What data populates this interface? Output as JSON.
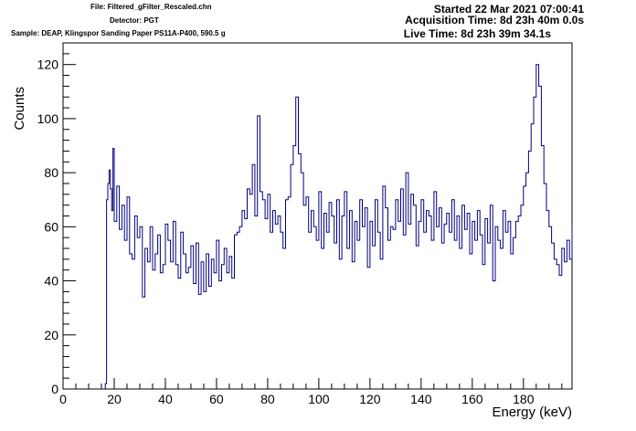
{
  "header": {
    "file": "File: Filtered_gFilter_Rescaled.chn",
    "detector": "Detector: PGT",
    "sample": "Sample: DEAP, Klingspor Sanding Paper PS11A-P400, 590.5 g",
    "started": "Started 22 Mar 2021 07:00:41",
    "acquisition": "Acquisition Time: 8d 23h 40m 0.0s",
    "live": "Live Time: 8d 23h 39m 34.1s"
  },
  "chart_data": {
    "type": "line",
    "style": "histogram-step",
    "xlabel": "Energy (keV)",
    "ylabel": "Counts",
    "xlim": [
      0,
      199
    ],
    "ylim": [
      0,
      128
    ],
    "x_ticks": [
      0,
      20,
      40,
      60,
      80,
      100,
      120,
      140,
      160,
      180
    ],
    "y_ticks": [
      0,
      20,
      40,
      60,
      80,
      100,
      120
    ],
    "grid": false,
    "line_color": "#000080",
    "x": [
      16.5,
      17.0,
      17.5,
      18.0,
      18.5,
      19.0,
      19.5,
      20.0,
      21,
      22,
      23,
      24,
      25,
      26,
      27,
      28,
      29,
      30,
      31,
      32,
      33,
      34,
      35,
      36,
      37,
      38,
      39,
      40,
      41,
      42,
      43,
      44,
      45,
      46,
      47,
      48,
      49,
      50,
      51,
      52,
      53,
      54,
      55,
      56,
      57,
      58,
      59,
      60,
      61,
      62,
      63,
      64,
      65,
      66,
      67,
      68,
      69,
      70,
      71,
      72,
      73,
      74,
      75,
      76,
      77,
      78,
      79,
      80,
      81,
      82,
      83,
      84,
      85,
      86,
      87,
      88,
      89,
      90,
      91,
      92,
      93,
      94,
      95,
      96,
      97,
      98,
      99,
      100,
      101,
      102,
      103,
      104,
      105,
      106,
      107,
      108,
      109,
      110,
      111,
      112,
      113,
      114,
      115,
      116,
      117,
      118,
      119,
      120,
      121,
      122,
      123,
      124,
      125,
      126,
      127,
      128,
      129,
      130,
      131,
      132,
      133,
      134,
      135,
      136,
      137,
      138,
      139,
      140,
      141,
      142,
      143,
      144,
      145,
      146,
      147,
      148,
      149,
      150,
      151,
      152,
      153,
      154,
      155,
      156,
      157,
      158,
      159,
      160,
      161,
      162,
      163,
      164,
      165,
      166,
      167,
      168,
      169,
      170,
      171,
      172,
      173,
      174,
      175,
      176,
      177,
      178,
      179,
      180,
      181,
      182,
      183,
      184,
      185,
      186,
      187,
      188,
      189,
      190,
      191,
      192,
      193,
      194,
      195,
      196,
      197,
      198,
      199
    ],
    "y": [
      2,
      70,
      76,
      81,
      74,
      66,
      89,
      62,
      75,
      59,
      68,
      55,
      71,
      50,
      48,
      64,
      56,
      60,
      34,
      52,
      47,
      60,
      44,
      50,
      57,
      43,
      46,
      61,
      55,
      47,
      62,
      46,
      41,
      58,
      50,
      43,
      45,
      53,
      39,
      54,
      35,
      47,
      36,
      50,
      38,
      48,
      43,
      55,
      40,
      46,
      52,
      43,
      49,
      41,
      57,
      58,
      60,
      66,
      63,
      74,
      72,
      83,
      64,
      101,
      73,
      70,
      63,
      72,
      58,
      66,
      61,
      64,
      58,
      52,
      70,
      71,
      83,
      90,
      108,
      87,
      80,
      68,
      71,
      58,
      66,
      60,
      55,
      73,
      52,
      65,
      58,
      69,
      64,
      54,
      70,
      48,
      64,
      73,
      52,
      66,
      47,
      62,
      55,
      70,
      60,
      67,
      45,
      62,
      53,
      70,
      58,
      48,
      75,
      67,
      55,
      60,
      59,
      70,
      62,
      74,
      57,
      80,
      61,
      72,
      68,
      53,
      62,
      70,
      58,
      66,
      64,
      55,
      73,
      60,
      67,
      54,
      61,
      65,
      58,
      70,
      55,
      64,
      52,
      68,
      59,
      65,
      50,
      62,
      55,
      66,
      57,
      46,
      63,
      54,
      68,
      40,
      60,
      55,
      52,
      66,
      58,
      62,
      50,
      56,
      62,
      64,
      68,
      75,
      80,
      88,
      98,
      108,
      120,
      112,
      90,
      76,
      66,
      60,
      54,
      48,
      46,
      42,
      52,
      47,
      55,
      48,
      60
    ]
  }
}
